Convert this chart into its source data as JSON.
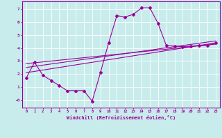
{
  "bg_color": "#c8ecec",
  "line_color": "#990099",
  "grid_color": "#ffffff",
  "xlabel": "Windchill (Refroidissement éolien,°C)",
  "xlim": [
    -0.5,
    23.5
  ],
  "ylim": [
    -0.6,
    7.6
  ],
  "yticks": [
    0,
    1,
    2,
    3,
    4,
    5,
    6,
    7
  ],
  "ytick_labels": [
    "-0",
    "1",
    "2",
    "3",
    "4",
    "5",
    "6",
    "7"
  ],
  "xticks": [
    0,
    1,
    2,
    3,
    4,
    5,
    6,
    7,
    8,
    9,
    10,
    11,
    12,
    13,
    14,
    15,
    16,
    17,
    18,
    19,
    20,
    21,
    22,
    23
  ],
  "series1_x": [
    0,
    1,
    2,
    3,
    4,
    5,
    6,
    7,
    8,
    9,
    10,
    11,
    12,
    13,
    14,
    15,
    16,
    17,
    18,
    19,
    20,
    21,
    22,
    23
  ],
  "series1_y": [
    1.7,
    2.9,
    1.9,
    1.5,
    1.1,
    0.7,
    0.7,
    0.7,
    -0.1,
    2.1,
    4.4,
    6.5,
    6.4,
    6.6,
    7.1,
    7.1,
    5.9,
    4.2,
    4.15,
    4.1,
    4.15,
    4.2,
    4.2,
    4.4
  ],
  "series2_x": [
    0,
    23
  ],
  "series2_y": [
    2.1,
    4.4
  ],
  "series3_x": [
    0,
    23
  ],
  "series3_y": [
    2.5,
    4.55
  ],
  "series4_x": [
    0,
    23
  ],
  "series4_y": [
    2.8,
    4.3
  ],
  "marker": "D",
  "marker_size": 2.0,
  "line_width": 0.8
}
